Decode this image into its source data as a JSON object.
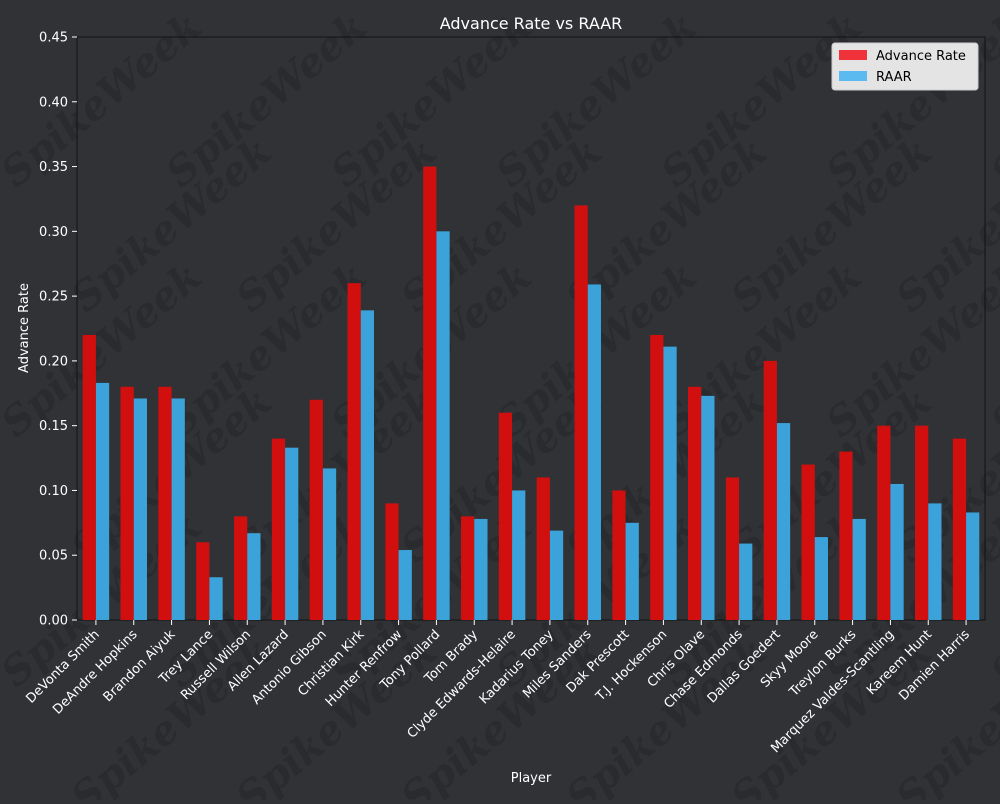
{
  "chart_data": {
    "type": "bar",
    "title": "Advance Rate vs RAAR",
    "xlabel": "Player",
    "ylabel": "Advance Rate",
    "ylim": [
      0,
      0.45
    ],
    "yticks": [
      "0.00",
      "0.05",
      "0.10",
      "0.15",
      "0.20",
      "0.25",
      "0.30",
      "0.35",
      "0.40",
      "0.45"
    ],
    "ytick_values": [
      0,
      0.05,
      0.1,
      0.15,
      0.2,
      0.25,
      0.3,
      0.35,
      0.4,
      0.45
    ],
    "legend_position": "top-right",
    "categories": [
      "DeVonta Smith",
      "DeAndre Hopkins",
      "Brandon Aiyuk",
      "Trey Lance",
      "Russell Wilson",
      "Allen Lazard",
      "Antonio Gibson",
      "Christian Kirk",
      "Hunter Renfrow",
      "Tony Pollard",
      "Tom Brady",
      "Clyde Edwards-Helaire",
      "Kadarius Toney",
      "Miles Sanders",
      "Dak Prescott",
      "T.J. Hockenson",
      "Chris Olave",
      "Chase Edmonds",
      "Dallas Goedert",
      "Skyy Moore",
      "Treylon Burks",
      "Marquez Valdes-Scantling",
      "Kareem Hunt",
      "Damien Harris"
    ],
    "series": [
      {
        "name": "Advance Rate",
        "color": "#d10f0f",
        "legend_color": "#f0333a",
        "values": [
          0.22,
          0.18,
          0.18,
          0.06,
          0.08,
          0.14,
          0.17,
          0.26,
          0.09,
          0.35,
          0.08,
          0.16,
          0.11,
          0.32,
          0.1,
          0.22,
          0.18,
          0.11,
          0.2,
          0.12,
          0.13,
          0.15,
          0.15,
          0.14
        ]
      },
      {
        "name": "RAAR",
        "color": "#3ba3da",
        "legend_color": "#5bbbf0",
        "values": [
          0.183,
          0.171,
          0.171,
          0.033,
          0.067,
          0.133,
          0.117,
          0.239,
          0.054,
          0.3,
          0.078,
          0.1,
          0.069,
          0.259,
          0.075,
          0.211,
          0.173,
          0.059,
          0.152,
          0.064,
          0.078,
          0.105,
          0.09,
          0.083
        ]
      }
    ]
  },
  "watermark_text": "SpikeWeek"
}
